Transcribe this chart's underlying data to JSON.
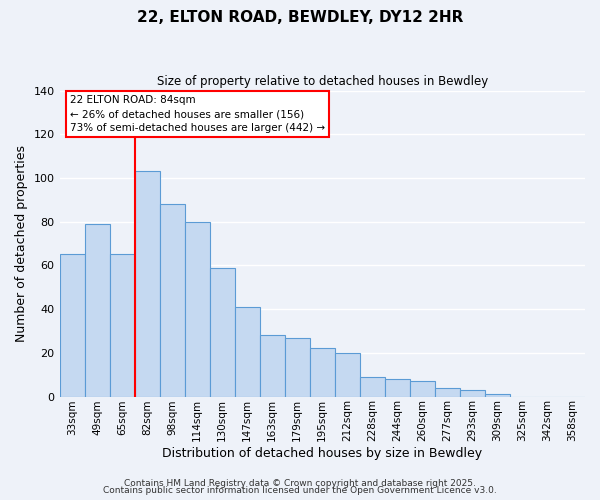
{
  "title": "22, ELTON ROAD, BEWDLEY, DY12 2HR",
  "subtitle": "Size of property relative to detached houses in Bewdley",
  "xlabel": "Distribution of detached houses by size in Bewdley",
  "ylabel": "Number of detached properties",
  "footnote1": "Contains HM Land Registry data © Crown copyright and database right 2025.",
  "footnote2": "Contains public sector information licensed under the Open Government Licence v3.0.",
  "bin_labels": [
    "33sqm",
    "49sqm",
    "65sqm",
    "82sqm",
    "98sqm",
    "114sqm",
    "130sqm",
    "147sqm",
    "163sqm",
    "179sqm",
    "195sqm",
    "212sqm",
    "228sqm",
    "244sqm",
    "260sqm",
    "277sqm",
    "293sqm",
    "309sqm",
    "325sqm",
    "342sqm",
    "358sqm"
  ],
  "bar_heights": [
    65,
    79,
    65,
    103,
    88,
    80,
    59,
    41,
    28,
    27,
    22,
    20,
    9,
    8,
    7,
    4,
    3,
    1,
    0,
    0,
    0
  ],
  "bar_color": "#c5d9f1",
  "bar_edge_color": "#5b9bd5",
  "vline_x_index": 3,
  "vline_color": "red",
  "annotation_title": "22 ELTON ROAD: 84sqm",
  "annotation_line1": "← 26% of detached houses are smaller (156)",
  "annotation_line2": "73% of semi-detached houses are larger (442) →",
  "annotation_box_color": "white",
  "annotation_box_edge": "red",
  "ylim": [
    0,
    140
  ],
  "yticks": [
    0,
    20,
    40,
    60,
    80,
    100,
    120,
    140
  ],
  "background_color": "#eef2f9",
  "grid_color": "white",
  "figsize": [
    6.0,
    5.0
  ],
  "dpi": 100
}
